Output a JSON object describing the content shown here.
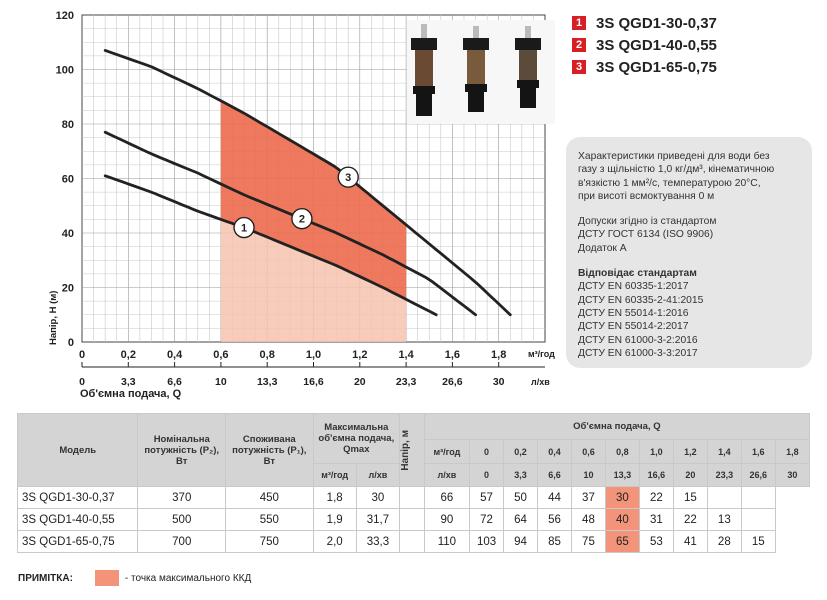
{
  "chart_data": {
    "type": "line",
    "xlabel": "Об'ємна подача, Q",
    "ylabel": "Напір, Н (м)",
    "x_unit": "м³/год",
    "x2_unit": "л/хв",
    "xlim": [
      0,
      2.0
    ],
    "ylim": [
      0,
      120
    ],
    "x_ticks": [
      "0",
      "0,2",
      "0,4",
      "0,6",
      "0,8",
      "1,0",
      "1,2",
      "1,4",
      "1,6",
      "1,8"
    ],
    "y_ticks": [
      "0",
      "20",
      "40",
      "60",
      "80",
      "100",
      "120"
    ],
    "x2_ticks": [
      "0",
      "3,3",
      "6,6",
      "10",
      "13,3",
      "16,6",
      "20",
      "23,3",
      "26,6",
      "30"
    ],
    "grid": true,
    "shaded_range": {
      "x_min": 0.6,
      "x_max": 1.4
    },
    "series": [
      {
        "label": "1",
        "x": [
          0.1,
          0.3,
          0.5,
          0.7,
          0.9,
          1.1,
          1.3,
          1.53
        ],
        "y": [
          61,
          55,
          48,
          42,
          35,
          28,
          20,
          10
        ]
      },
      {
        "label": "2",
        "x": [
          0.1,
          0.3,
          0.5,
          0.7,
          0.9,
          1.1,
          1.3,
          1.5,
          1.7
        ],
        "y": [
          77,
          69,
          62,
          54,
          47,
          40,
          32,
          23,
          10
        ]
      },
      {
        "label": "3",
        "x": [
          0.1,
          0.3,
          0.5,
          0.7,
          0.9,
          1.1,
          1.3,
          1.5,
          1.7,
          1.85
        ],
        "y": [
          107,
          101,
          93,
          84,
          74,
          64,
          50,
          36,
          22,
          10
        ]
      }
    ]
  },
  "legend": [
    {
      "num": "1",
      "name": "3S QGD1-30-0,37"
    },
    {
      "num": "2",
      "name": "3S QGD1-40-0,55"
    },
    {
      "num": "3",
      "name": "3S QGD1-65-0,75"
    }
  ],
  "info": {
    "p1": [
      "Характеристики приведені для води без",
      "газу з щільністю 1,0 кг/дм³, кінематичною",
      "в'язкістю 1 мм²/с, температурою 20°С,",
      "при висоті всмоктування 0 м"
    ],
    "p2": [
      "Допуски згідно із стандартом",
      "ДСТУ ГОСТ 6134 (ISO 9906)",
      "Додаток А"
    ],
    "standards_title": "Відповідає стандартам",
    "standards": [
      "ДСТУ EN 60335-1:2017",
      "ДСТУ EN 60335-2-41:2015",
      "ДСТУ EN 55014-1:2016",
      "ДСТУ EN 55014-2:2017",
      "ДСТУ EN 61000-3-2:2016",
      "ДСТУ EN 61000-3-3:2017"
    ]
  },
  "table": {
    "h_model": "Модель",
    "h_p2": "Номінальна потужність (P₂), Вт",
    "h_p1": "Споживана потужність (P₁), Вт",
    "h_qmax": "Максимальна об'ємна подача, Qmax",
    "h_flow": "Об'ємна подача, Q",
    "h_head": "Напір, м",
    "u_m3": "м³/год",
    "u_lmin": "л/хв",
    "q_m3": [
      "0",
      "0,2",
      "0,4",
      "0,6",
      "0,8",
      "1,0",
      "1,2",
      "1,4",
      "1,6",
      "1,8"
    ],
    "q_lmin": [
      "0",
      "3,3",
      "6,6",
      "10",
      "13,3",
      "16,6",
      "20",
      "23,3",
      "26,6",
      "30"
    ],
    "rows": [
      {
        "model": "3S QGD1-30-0,37",
        "p2": "370",
        "p1": "450",
        "qmax_m3": "1,8",
        "qmax_l": "30",
        "head": [
          "66",
          "57",
          "50",
          "44",
          "37",
          "30",
          "22",
          "15",
          "",
          ""
        ]
      },
      {
        "model": "3S QGD1-40-0,55",
        "p2": "500",
        "p1": "550",
        "qmax_m3": "1,9",
        "qmax_l": "31,7",
        "head": [
          "90",
          "72",
          "64",
          "56",
          "48",
          "40",
          "31",
          "22",
          "13",
          ""
        ]
      },
      {
        "model": "3S QGD1-65-0,75",
        "p2": "700",
        "p1": "750",
        "qmax_m3": "2,0",
        "qmax_l": "33,3",
        "head": [
          "110",
          "103",
          "94",
          "85",
          "75",
          "65",
          "53",
          "41",
          "28",
          "15"
        ]
      }
    ]
  },
  "note": {
    "label": "ПРИМІТКА:",
    "text": "- точка максимального ККД"
  },
  "colors": {
    "shade_light": "#f7c3ae",
    "shade_dark": "#ec6a4c",
    "highlight": "#f3937a",
    "accent": "#d71f26"
  }
}
